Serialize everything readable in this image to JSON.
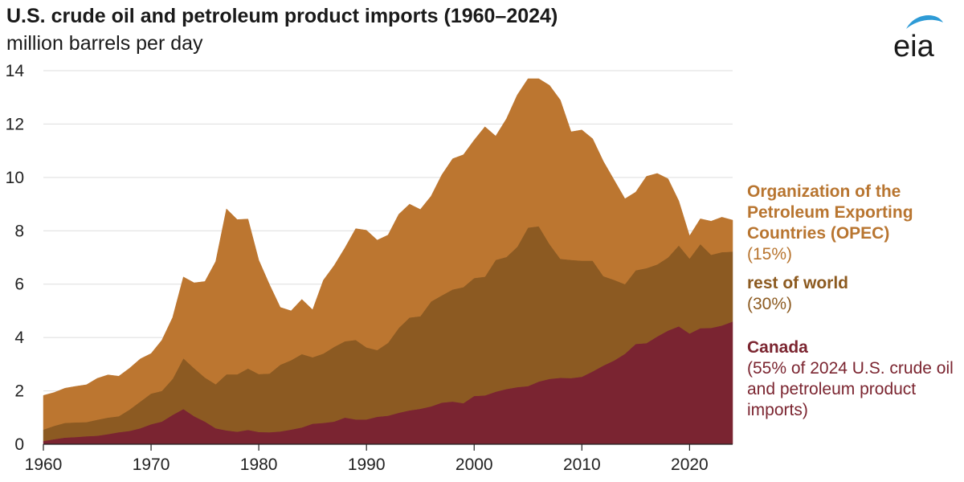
{
  "header": {
    "title": "U.S. crude oil and petroleum product imports (1960–2024)",
    "subtitle": "million barrels per day",
    "logo_text": "eia"
  },
  "legend": {
    "opec": {
      "name": "Organization of the Petroleum Exporting Countries (OPEC)",
      "pct": "(15%)"
    },
    "row": {
      "name": "rest of world",
      "pct": "(30%)"
    },
    "canada": {
      "name": "Canada",
      "pct": "(55% of 2024 U.S. crude oil and petroleum product imports)"
    }
  },
  "colors": {
    "opec": "#BC7630",
    "row": "#8C5A22",
    "canada": "#7A2431",
    "grid": "#dddddd",
    "logo": "#2E9BD6"
  },
  "chart_data": {
    "type": "area",
    "stacked": true,
    "title": "U.S. crude oil and petroleum product imports (1960–2024)",
    "ylabel": "million barrels per day",
    "xlim": [
      1960,
      2024
    ],
    "ylim": [
      0,
      14
    ],
    "x_ticks": [
      1960,
      1970,
      1980,
      1990,
      2000,
      2010,
      2020
    ],
    "y_ticks": [
      0,
      2,
      4,
      6,
      8,
      10,
      12,
      14
    ],
    "grid": "horizontal",
    "legend_position": "right",
    "x": [
      1960,
      1961,
      1962,
      1963,
      1964,
      1965,
      1966,
      1967,
      1968,
      1969,
      1970,
      1971,
      1972,
      1973,
      1974,
      1975,
      1976,
      1977,
      1978,
      1979,
      1980,
      1981,
      1982,
      1983,
      1984,
      1985,
      1986,
      1987,
      1988,
      1989,
      1990,
      1991,
      1992,
      1993,
      1994,
      1995,
      1996,
      1997,
      1998,
      1999,
      2000,
      2001,
      2002,
      2003,
      2004,
      2005,
      2006,
      2007,
      2008,
      2009,
      2010,
      2011,
      2012,
      2013,
      2014,
      2015,
      2016,
      2017,
      2018,
      2019,
      2020,
      2021,
      2022,
      2023,
      2024
    ],
    "series": [
      {
        "name": "Canada",
        "values": [
          0.12,
          0.19,
          0.25,
          0.27,
          0.3,
          0.32,
          0.38,
          0.45,
          0.5,
          0.6,
          0.75,
          0.85,
          1.1,
          1.32,
          1.05,
          0.85,
          0.6,
          0.52,
          0.47,
          0.54,
          0.46,
          0.45,
          0.48,
          0.55,
          0.63,
          0.77,
          0.8,
          0.85,
          1.0,
          0.93,
          0.93,
          1.03,
          1.07,
          1.18,
          1.27,
          1.33,
          1.42,
          1.56,
          1.6,
          1.54,
          1.81,
          1.83,
          1.97,
          2.07,
          2.14,
          2.18,
          2.35,
          2.45,
          2.49,
          2.48,
          2.53,
          2.73,
          2.95,
          3.14,
          3.39,
          3.76,
          3.79,
          4.04,
          4.26,
          4.42,
          4.15,
          4.35,
          4.36,
          4.45,
          4.6
        ]
      },
      {
        "name": "rest of world",
        "values": [
          0.43,
          0.5,
          0.55,
          0.55,
          0.53,
          0.6,
          0.62,
          0.6,
          0.8,
          1.0,
          1.15,
          1.15,
          1.35,
          1.9,
          1.8,
          1.65,
          1.65,
          2.1,
          2.15,
          2.3,
          2.17,
          2.2,
          2.5,
          2.6,
          2.75,
          2.49,
          2.6,
          2.8,
          2.86,
          2.98,
          2.7,
          2.5,
          2.73,
          3.18,
          3.48,
          3.47,
          3.93,
          4.02,
          4.2,
          4.35,
          4.42,
          4.45,
          4.94,
          4.95,
          5.26,
          5.94,
          5.82,
          5.05,
          4.46,
          4.43,
          4.35,
          4.15,
          3.35,
          3.02,
          2.61,
          2.76,
          2.81,
          2.7,
          2.74,
          3.03,
          2.81,
          3.15,
          2.74,
          2.75,
          2.62
        ]
      },
      {
        "name": "Organization of the Petroleum Exporting Countries (OPEC)",
        "values": [
          1.28,
          1.25,
          1.3,
          1.35,
          1.4,
          1.55,
          1.6,
          1.5,
          1.55,
          1.6,
          1.5,
          1.9,
          2.3,
          3.05,
          3.2,
          3.6,
          4.6,
          6.2,
          5.8,
          5.6,
          4.27,
          3.33,
          2.15,
          1.85,
          2.05,
          1.78,
          2.75,
          3.05,
          3.5,
          4.17,
          4.39,
          4.12,
          4.04,
          4.26,
          4.25,
          4.0,
          3.95,
          4.52,
          4.9,
          4.96,
          5.17,
          5.62,
          4.64,
          5.18,
          5.69,
          5.58,
          5.53,
          5.95,
          5.95,
          4.8,
          4.9,
          4.57,
          4.3,
          3.74,
          3.2,
          2.93,
          3.44,
          3.41,
          2.95,
          1.67,
          0.85,
          0.95,
          1.26,
          1.31,
          1.18
        ]
      }
    ]
  }
}
